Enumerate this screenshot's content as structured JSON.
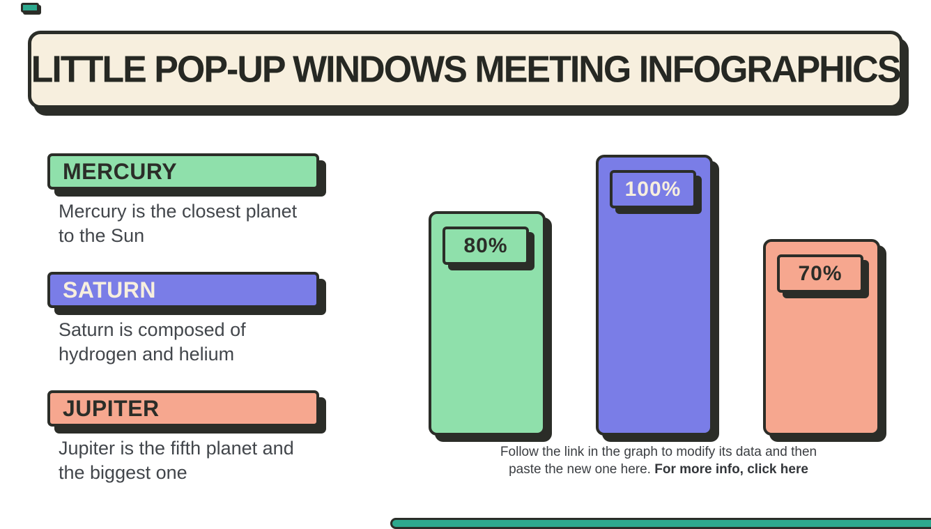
{
  "page": {
    "background": "#ffffff"
  },
  "colors": {
    "cream": "#f7efde",
    "ink": "#2b2d28",
    "green": "#8fe0ab",
    "purple": "#7a7de7",
    "salmon": "#f6a78f",
    "teal_accent": "#2da98e",
    "body_text": "#42464b"
  },
  "header": {
    "title": "LITTLE POP-UP WINDOWS MEETING INFOGRAPHICS"
  },
  "sections": [
    {
      "label": "MERCURY",
      "description": "Mercury is the closest planet to the Sun",
      "color": "#8fe0ab",
      "label_color": "#2b2d28"
    },
    {
      "label": "SATURN",
      "description": "Saturn is composed of hydrogen and helium",
      "color": "#7a7de7",
      "label_color": "#f7efde"
    },
    {
      "label": "JUPITER",
      "description": "Jupiter is the fifth planet and the biggest one",
      "color": "#f6a78f",
      "label_color": "#2b2d28"
    }
  ],
  "chart_data": {
    "type": "bar",
    "categories": [
      "Mercury",
      "Saturn",
      "Jupiter"
    ],
    "values": [
      80,
      100,
      70
    ],
    "value_labels": [
      "80%",
      "100%",
      "70%"
    ],
    "colors": [
      "#8fe0ab",
      "#7a7de7",
      "#f6a78f"
    ],
    "label_text_colors": [
      "#2b2d28",
      "#f7efde",
      "#2b2d28"
    ],
    "title": "",
    "xlabel": "",
    "ylabel": "",
    "ylim": [
      0,
      100
    ],
    "grid": false,
    "legend": "none"
  },
  "footer": {
    "line1": "Follow the link in the graph to modify its data and then",
    "line2_regular": "paste the new one here. ",
    "line2_bold": "For more info, click here"
  }
}
